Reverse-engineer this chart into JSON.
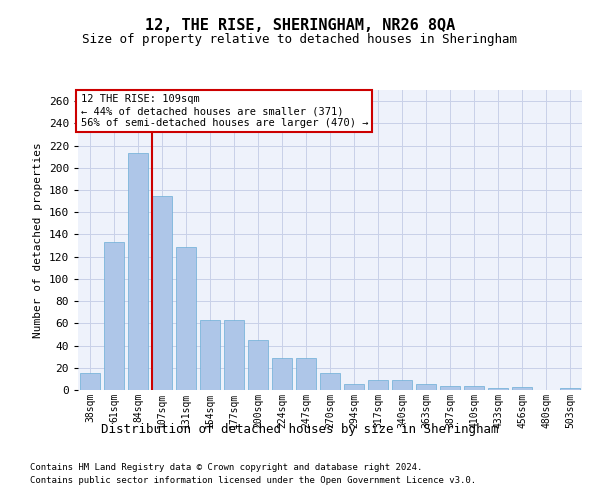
{
  "title": "12, THE RISE, SHERINGHAM, NR26 8QA",
  "subtitle": "Size of property relative to detached houses in Sheringham",
  "xlabel": "Distribution of detached houses by size in Sheringham",
  "ylabel": "Number of detached properties",
  "categories": [
    "38sqm",
    "61sqm",
    "84sqm",
    "107sqm",
    "131sqm",
    "154sqm",
    "177sqm",
    "200sqm",
    "224sqm",
    "247sqm",
    "270sqm",
    "294sqm",
    "317sqm",
    "340sqm",
    "363sqm",
    "387sqm",
    "410sqm",
    "433sqm",
    "456sqm",
    "480sqm",
    "503sqm"
  ],
  "values": [
    15,
    133,
    213,
    175,
    129,
    63,
    63,
    45,
    29,
    29,
    15,
    5,
    9,
    9,
    5,
    4,
    4,
    2,
    3,
    0,
    2
  ],
  "bar_color": "#aec6e8",
  "bar_edgecolor": "#6baed6",
  "redline_index": 3,
  "ylim": [
    0,
    270
  ],
  "yticks": [
    0,
    20,
    40,
    60,
    80,
    100,
    120,
    140,
    160,
    180,
    200,
    220,
    240,
    260
  ],
  "annotation_title": "12 THE RISE: 109sqm",
  "annotation_line1": "← 44% of detached houses are smaller (371)",
  "annotation_line2": "56% of semi-detached houses are larger (470) →",
  "annotation_box_color": "#ffffff",
  "annotation_box_edgecolor": "#cc0000",
  "footer1": "Contains HM Land Registry data © Crown copyright and database right 2024.",
  "footer2": "Contains public sector information licensed under the Open Government Licence v3.0.",
  "background_color": "#eef2fb",
  "grid_color": "#c8d0e8",
  "title_fontsize": 11,
  "subtitle_fontsize": 9
}
